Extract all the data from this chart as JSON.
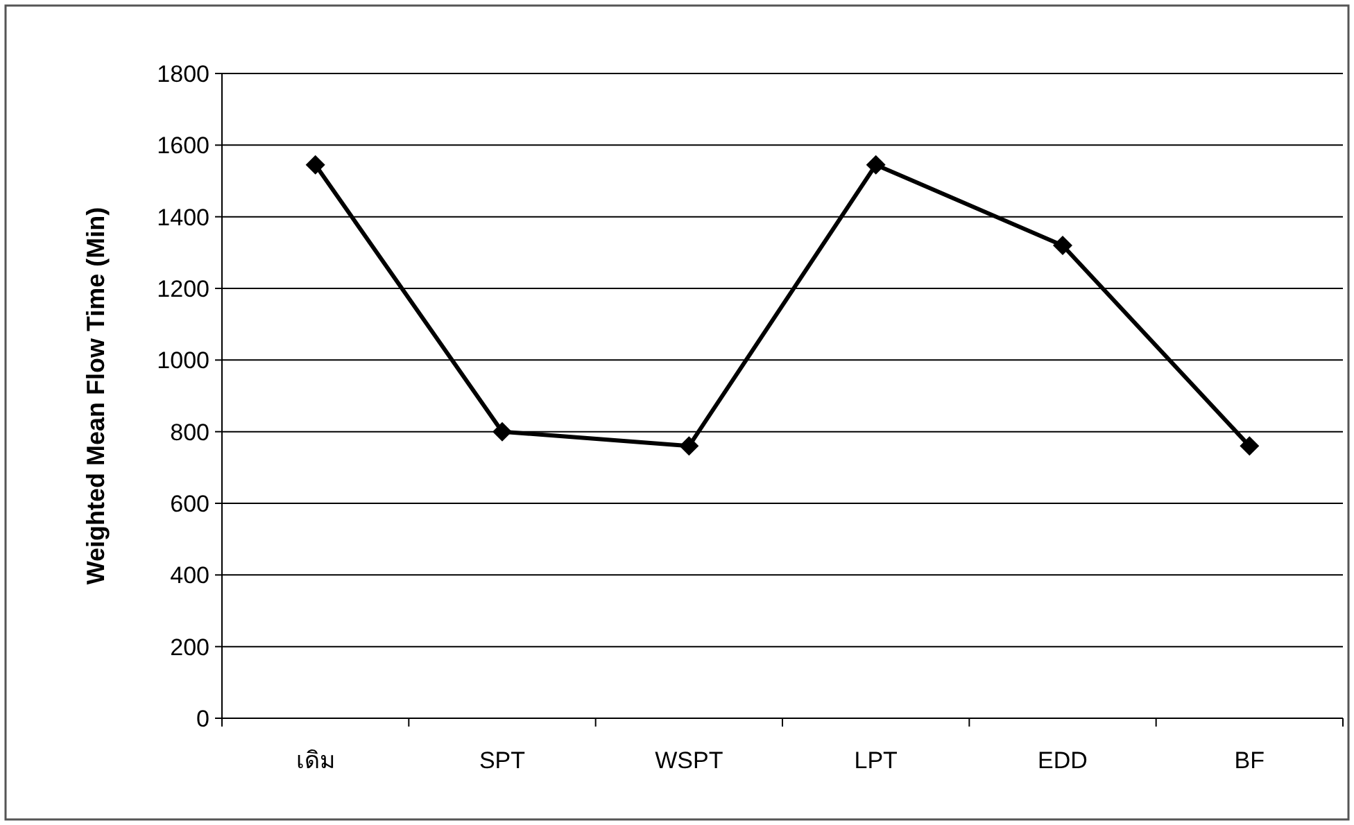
{
  "chart_data": {
    "type": "line",
    "ylabel": "Weighted Mean Flow Time (Min)",
    "categories": [
      "เดิม",
      "SPT",
      "WSPT",
      "LPT",
      "EDD",
      "BF"
    ],
    "values": [
      1545,
      800,
      760,
      1545,
      1320,
      760
    ],
    "color": "#000000",
    "marker": "diamond",
    "line_style": "solid",
    "grid": "y",
    "ylim": [
      0,
      1800
    ],
    "yticks": [
      0,
      200,
      400,
      600,
      800,
      1000,
      1200,
      1400,
      1600,
      1800
    ]
  }
}
